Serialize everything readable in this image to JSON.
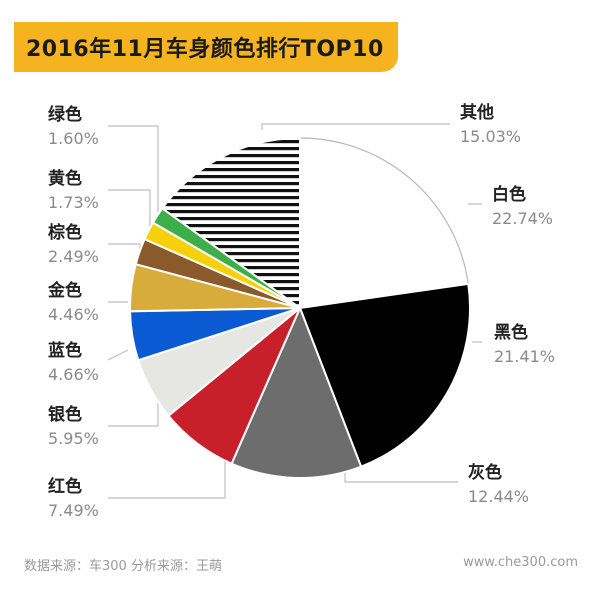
{
  "chart_data": {
    "type": "pie",
    "title": "2016年11月车身颜色排行TOP10",
    "slices": [
      {
        "label": "白色",
        "value": 22.74,
        "display": "22.74%",
        "color": "#ffffff",
        "side": "right"
      },
      {
        "label": "黑色",
        "value": 21.41,
        "display": "21.41%",
        "color": "#000000",
        "side": "right"
      },
      {
        "label": "灰色",
        "value": 12.44,
        "display": "12.44%",
        "color": "#6d6d6d",
        "side": "right"
      },
      {
        "label": "红色",
        "value": 7.49,
        "display": "7.49%",
        "color": "#c8202a",
        "side": "left"
      },
      {
        "label": "银色",
        "value": 5.95,
        "display": "5.95%",
        "color": "#e6e6e2",
        "side": "left"
      },
      {
        "label": "蓝色",
        "value": 4.66,
        "display": "4.66%",
        "color": "#0a5bd3",
        "side": "left"
      },
      {
        "label": "金色",
        "value": 4.46,
        "display": "4.46%",
        "color": "#d7ac3a",
        "side": "left"
      },
      {
        "label": "棕色",
        "value": 2.49,
        "display": "2.49%",
        "color": "#8b5a2b",
        "side": "left"
      },
      {
        "label": "黄色",
        "value": 1.73,
        "display": "1.73%",
        "color": "#f4d10b",
        "side": "left"
      },
      {
        "label": "绿色",
        "value": 1.6,
        "display": "1.60%",
        "color": "#3cae4a",
        "side": "left"
      },
      {
        "label": "其他",
        "value": 15.03,
        "display": "15.03%",
        "color": "striped-black-white",
        "side": "right"
      }
    ],
    "start_angle": "12 o'clock",
    "direction": "clockwise",
    "legend": "none"
  },
  "footer": {
    "source": "数据来源：车300 分析来源：王萌",
    "website": "www.che300.com"
  },
  "colors": {
    "banner": "#f5b41f",
    "leader_line": "#bdbdbd"
  }
}
